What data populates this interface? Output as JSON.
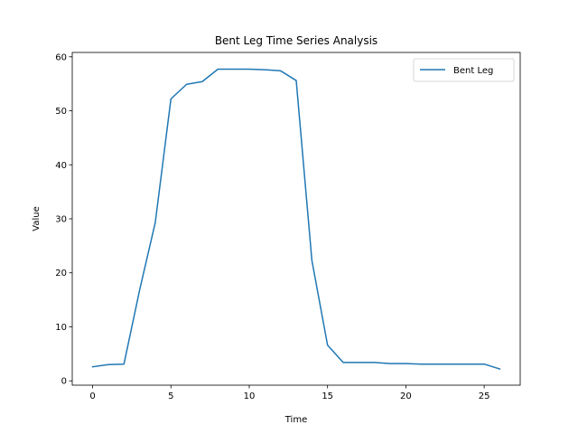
{
  "chart_data": {
    "type": "line",
    "title": "Bent Leg Time Series Analysis",
    "xlabel": "Time",
    "ylabel": "Value",
    "xlim": [
      -1.3,
      27.3
    ],
    "ylim": [
      -0.8,
      60.8
    ],
    "xticks": [
      0,
      5,
      10,
      15,
      20,
      25
    ],
    "yticks": [
      0,
      10,
      20,
      30,
      40,
      50,
      60
    ],
    "grid": false,
    "legend_position": "top-right",
    "series": [
      {
        "name": "Bent Leg",
        "color": "#1f77b4",
        "x": [
          0,
          1,
          2,
          3,
          4,
          5,
          6,
          7,
          8,
          9,
          10,
          11,
          12,
          13,
          14,
          15,
          16,
          17,
          18,
          19,
          20,
          21,
          22,
          23,
          24,
          25,
          26
        ],
        "values": [
          2.6,
          3.0,
          3.1,
          16.8,
          29.3,
          52.2,
          54.9,
          55.4,
          57.7,
          57.7,
          57.7,
          57.6,
          57.4,
          55.6,
          22.3,
          6.6,
          3.4,
          3.4,
          3.4,
          3.2,
          3.2,
          3.1,
          3.1,
          3.1,
          3.1,
          3.1,
          2.2
        ]
      }
    ]
  }
}
